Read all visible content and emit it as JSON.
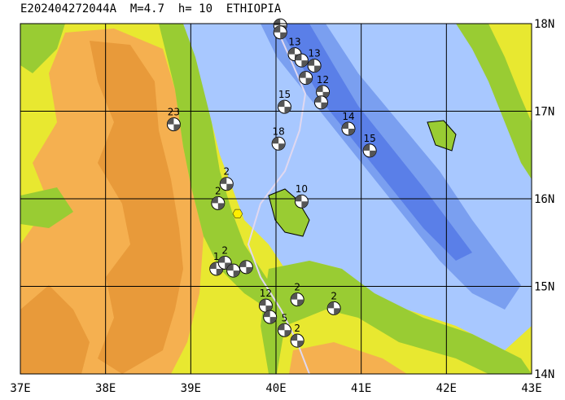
{
  "title": "E202404272044A  M=4.7  h= 10  ETHIOPIA",
  "map": {
    "lon_range": [
      37,
      43
    ],
    "lat_range": [
      14,
      18
    ],
    "lon_labels": [
      "37E",
      "38E",
      "39E",
      "40E",
      "41E",
      "42E",
      "43E"
    ],
    "lat_labels": [
      "18N",
      "17N",
      "16N",
      "15N",
      "14N"
    ],
    "colors": {
      "deep_sea": "#5a7fe8",
      "mid_sea": "#7a9ff0",
      "shallow_sea": "#a8c8ff",
      "coast_low": "#99cc33",
      "plain": "#e8e830",
      "highland": "#f5b050",
      "mountain": "#e89a3a",
      "grid": "#000000",
      "track": "#e0d8f0",
      "event_marker": "#ffee00"
    }
  },
  "events": [
    {
      "label": "",
      "lon": 40.05,
      "lat": 17.98
    },
    {
      "label": "",
      "lon": 40.05,
      "lat": 17.9
    },
    {
      "label": "13",
      "lon": 40.22,
      "lat": 17.65
    },
    {
      "label": "",
      "lon": 40.3,
      "lat": 17.58
    },
    {
      "label": "13",
      "lon": 40.45,
      "lat": 17.52
    },
    {
      "label": "",
      "lon": 40.35,
      "lat": 17.38
    },
    {
      "label": "12",
      "lon": 40.55,
      "lat": 17.22
    },
    {
      "label": "",
      "lon": 40.53,
      "lat": 17.1
    },
    {
      "label": "15",
      "lon": 40.1,
      "lat": 17.05
    },
    {
      "label": "14",
      "lon": 40.85,
      "lat": 16.8
    },
    {
      "label": "23",
      "lon": 38.8,
      "lat": 16.85
    },
    {
      "label": "18",
      "lon": 40.03,
      "lat": 16.63
    },
    {
      "label": "15",
      "lon": 41.1,
      "lat": 16.55
    },
    {
      "label": "2",
      "lon": 39.42,
      "lat": 16.17
    },
    {
      "label": "2",
      "lon": 39.32,
      "lat": 15.95
    },
    {
      "label": "10",
      "lon": 40.3,
      "lat": 15.97
    },
    {
      "label": "1",
      "lon": 39.3,
      "lat": 15.2
    },
    {
      "label": "2",
      "lon": 39.4,
      "lat": 15.27
    },
    {
      "label": "",
      "lon": 39.5,
      "lat": 15.18
    },
    {
      "label": "",
      "lon": 39.65,
      "lat": 15.22
    },
    {
      "label": "12",
      "lon": 39.88,
      "lat": 14.78
    },
    {
      "label": "",
      "lon": 39.93,
      "lat": 14.65
    },
    {
      "label": "2",
      "lon": 40.25,
      "lat": 14.85
    },
    {
      "label": "2",
      "lon": 40.68,
      "lat": 14.75
    },
    {
      "label": "5",
      "lon": 40.1,
      "lat": 14.5
    },
    {
      "label": "2",
      "lon": 40.25,
      "lat": 14.38
    }
  ],
  "event_star": {
    "lon": 39.55,
    "lat": 15.83
  }
}
